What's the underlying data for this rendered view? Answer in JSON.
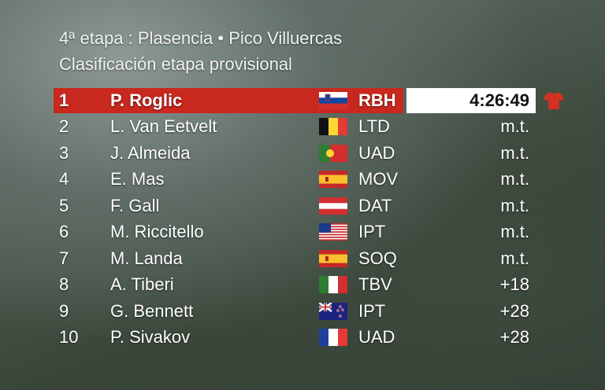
{
  "header": {
    "stage": "4ª etapa : Plasencia • Pico Villuercas",
    "subtitle": "Clasificación etapa provisional"
  },
  "table": {
    "rows": [
      [
        "1",
        "P. Roglic",
        "RBH",
        "4:26:49"
      ],
      [
        "2",
        "L. Van Eetvelt",
        "LTD",
        "m.t."
      ],
      [
        "3",
        "J. Almeida",
        "UAD",
        "m.t."
      ],
      [
        "4",
        "E. Mas",
        "MOV",
        "m.t."
      ],
      [
        "5",
        "F. Gall",
        "DAT",
        "m.t."
      ],
      [
        "6",
        "M. Riccitello",
        "IPT",
        "m.t."
      ],
      [
        "7",
        "M. Landa",
        "SOQ",
        "m.t."
      ],
      [
        "8",
        "A. Tiberi",
        "TBV",
        "+18"
      ],
      [
        "9",
        "G. Bennett",
        "IPT",
        "+28"
      ],
      [
        "10",
        "P. Sivakov",
        "UAD",
        "+28"
      ]
    ]
  }
}
